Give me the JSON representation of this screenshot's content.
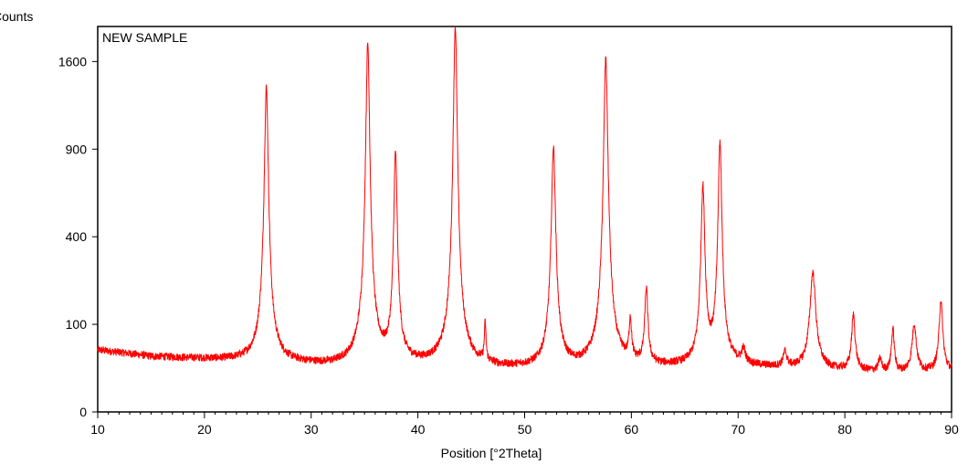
{
  "chart_data": {
    "type": "line",
    "title": "NEW SAMPLE",
    "xlabel": "Position [°2Theta]",
    "ylabel": "Counts",
    "y_scale": "sqrt",
    "xlim": [
      10,
      90
    ],
    "ylim": [
      0,
      1936
    ],
    "x_ticks": [
      {
        "value": 10,
        "label": "10"
      },
      {
        "value": 20,
        "label": "20"
      },
      {
        "value": 30,
        "label": "30"
      },
      {
        "value": 40,
        "label": "40"
      },
      {
        "value": 50,
        "label": "50"
      },
      {
        "value": 60,
        "label": "60"
      },
      {
        "value": 70,
        "label": "70"
      },
      {
        "value": 80,
        "label": "80"
      },
      {
        "value": 90,
        "label": "90"
      }
    ],
    "y_ticks": [
      {
        "value": 0,
        "label": "0"
      },
      {
        "value": 100,
        "label": "100"
      },
      {
        "value": 400,
        "label": "400"
      },
      {
        "value": 900,
        "label": "900"
      },
      {
        "value": 1600,
        "label": "1600"
      }
    ],
    "grid": false,
    "line_color": "#ff0000",
    "series": [
      {
        "baseline": [
          [
            10,
            50
          ],
          [
            15,
            40
          ],
          [
            25,
            33
          ],
          [
            32,
            27
          ],
          [
            40,
            28
          ],
          [
            48,
            24
          ],
          [
            55,
            24
          ],
          [
            60,
            26
          ],
          [
            65,
            26
          ],
          [
            70,
            27
          ],
          [
            75,
            24
          ],
          [
            80,
            22
          ],
          [
            85,
            20
          ],
          [
            90,
            22
          ]
        ],
        "peaks": [
          {
            "x": 25.8,
            "height": 1340,
            "width": 0.3
          },
          {
            "x": 35.3,
            "height": 1740,
            "width": 0.3
          },
          {
            "x": 37.9,
            "height": 850,
            "width": 0.25
          },
          {
            "x": 43.5,
            "height": 1910,
            "width": 0.3
          },
          {
            "x": 46.3,
            "height": 70,
            "width": 0.12
          },
          {
            "x": 52.7,
            "height": 890,
            "width": 0.3
          },
          {
            "x": 57.6,
            "height": 1600,
            "width": 0.32
          },
          {
            "x": 59.9,
            "height": 80,
            "width": 0.18
          },
          {
            "x": 61.4,
            "height": 170,
            "width": 0.22
          },
          {
            "x": 66.7,
            "height": 640,
            "width": 0.27
          },
          {
            "x": 68.3,
            "height": 920,
            "width": 0.27
          },
          {
            "x": 70.5,
            "height": 20,
            "width": 0.3
          },
          {
            "x": 74.4,
            "height": 20,
            "width": 0.3
          },
          {
            "x": 77.0,
            "height": 230,
            "width": 0.4
          },
          {
            "x": 80.8,
            "height": 100,
            "width": 0.25
          },
          {
            "x": 83.3,
            "height": 15,
            "width": 0.25
          },
          {
            "x": 84.5,
            "height": 70,
            "width": 0.2
          },
          {
            "x": 86.5,
            "height": 80,
            "width": 0.3
          },
          {
            "x": 89.0,
            "height": 140,
            "width": 0.25
          }
        ]
      }
    ]
  }
}
